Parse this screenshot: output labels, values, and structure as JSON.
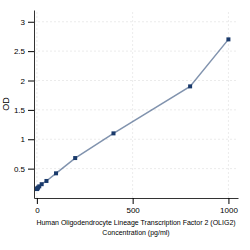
{
  "chart_data": {
    "type": "line",
    "x": [
      0.781,
      1.563,
      3.125,
      6.25,
      12.5,
      25,
      50,
      100,
      200,
      400,
      800,
      1000
    ],
    "series": [
      {
        "values": [
          0.152,
          0.158,
          0.166,
          0.178,
          0.198,
          0.235,
          0.29,
          0.42,
          0.68,
          1.1,
          1.9,
          2.7
        ],
        "color": "#1a3a6b",
        "marker": "square"
      }
    ],
    "xlabel": "Human Oligodendrocyte Lineage Transcription Factor 2 (OLIG2)\nConcentration (pg/ml)",
    "ylabel": "OD",
    "xlim": [
      -15,
      1050
    ],
    "ylim": [
      0,
      3.2
    ],
    "xticks": [
      0,
      500,
      1000
    ],
    "yticks": [
      0.5,
      1,
      1.5,
      2,
      2.5,
      3
    ],
    "grid": true
  }
}
